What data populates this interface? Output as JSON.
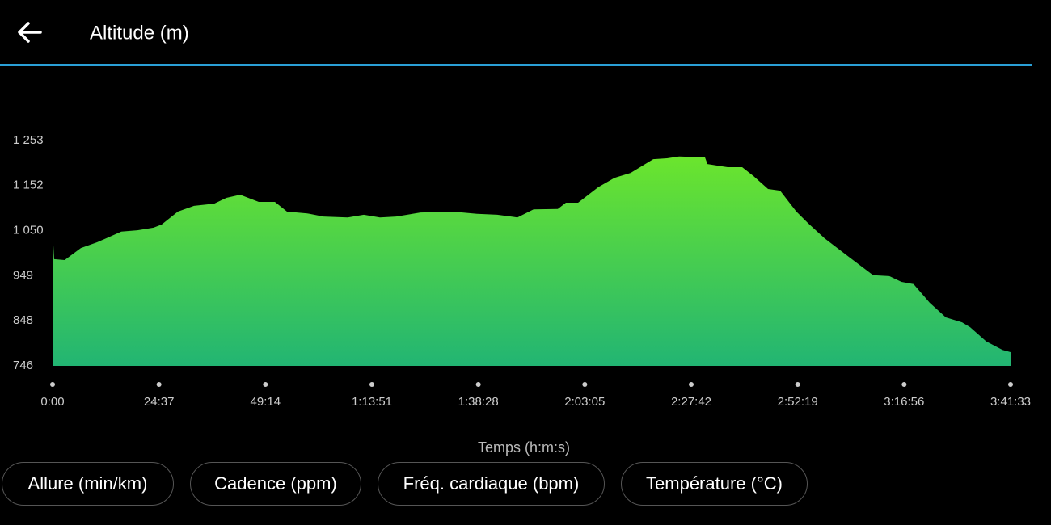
{
  "header": {
    "title": "Altitude (m)"
  },
  "chart_data": {
    "type": "area",
    "x_label": "Temps (h:m:s)",
    "x": [
      0,
      22,
      168,
      393,
      617,
      954,
      1178,
      1402,
      1514,
      1739,
      1963,
      2244,
      2412,
      2603,
      2861,
      3085,
      3253,
      3534,
      3758,
      4095,
      4319,
      4543,
      4768,
      5104,
      5553,
      5889,
      6170,
      6450,
      6674,
      7011,
      7123,
      7292,
      7572,
      7797,
      8021,
      8335,
      8526,
      8694,
      9053,
      9087,
      9367,
      9569,
      9726,
      9928,
      10096,
      10321,
      10489,
      10713,
      11050,
      11386,
      11611,
      11779,
      11947,
      12171,
      12395,
      12620,
      12732,
      12956,
      13181,
      13293
    ],
    "values": [
      1050,
      986,
      984,
      1011,
      1024,
      1048,
      1051,
      1057,
      1064,
      1093,
      1106,
      1111,
      1124,
      1131,
      1115,
      1115,
      1093,
      1089,
      1082,
      1080,
      1086,
      1080,
      1082,
      1091,
      1093,
      1088,
      1086,
      1080,
      1098,
      1099,
      1113,
      1113,
      1148,
      1169,
      1180,
      1211,
      1213,
      1217,
      1215,
      1200,
      1193,
      1193,
      1173,
      1144,
      1140,
      1093,
      1066,
      1033,
      991,
      950,
      948,
      935,
      930,
      888,
      855,
      844,
      833,
      801,
      782,
      777
    ],
    "xlim": [
      0,
      13293
    ],
    "xticks": [
      {
        "value": 0,
        "label": "0:00"
      },
      {
        "value": 1477,
        "label": "24:37"
      },
      {
        "value": 2954,
        "label": "49:14"
      },
      {
        "value": 4431,
        "label": "1:13:51"
      },
      {
        "value": 5908,
        "label": "1:38:28"
      },
      {
        "value": 7385,
        "label": "2:03:05"
      },
      {
        "value": 8862,
        "label": "2:27:42"
      },
      {
        "value": 10339,
        "label": "2:52:19"
      },
      {
        "value": 11816,
        "label": "3:16:56"
      },
      {
        "value": 13293,
        "label": "3:41:33"
      }
    ],
    "ylim": [
      746,
      1253
    ],
    "yticks": [
      746,
      848,
      949,
      {
        "value": 1050,
        "label": "1 050"
      },
      {
        "value": 1152,
        "label": "1 152"
      },
      {
        "value": 1253,
        "label": "1 253"
      }
    ]
  },
  "buttons": [
    "Allure (min/km)",
    "Cadence (ppm)",
    "Fréq. cardiaque (bpm)",
    "Température (°C)"
  ]
}
